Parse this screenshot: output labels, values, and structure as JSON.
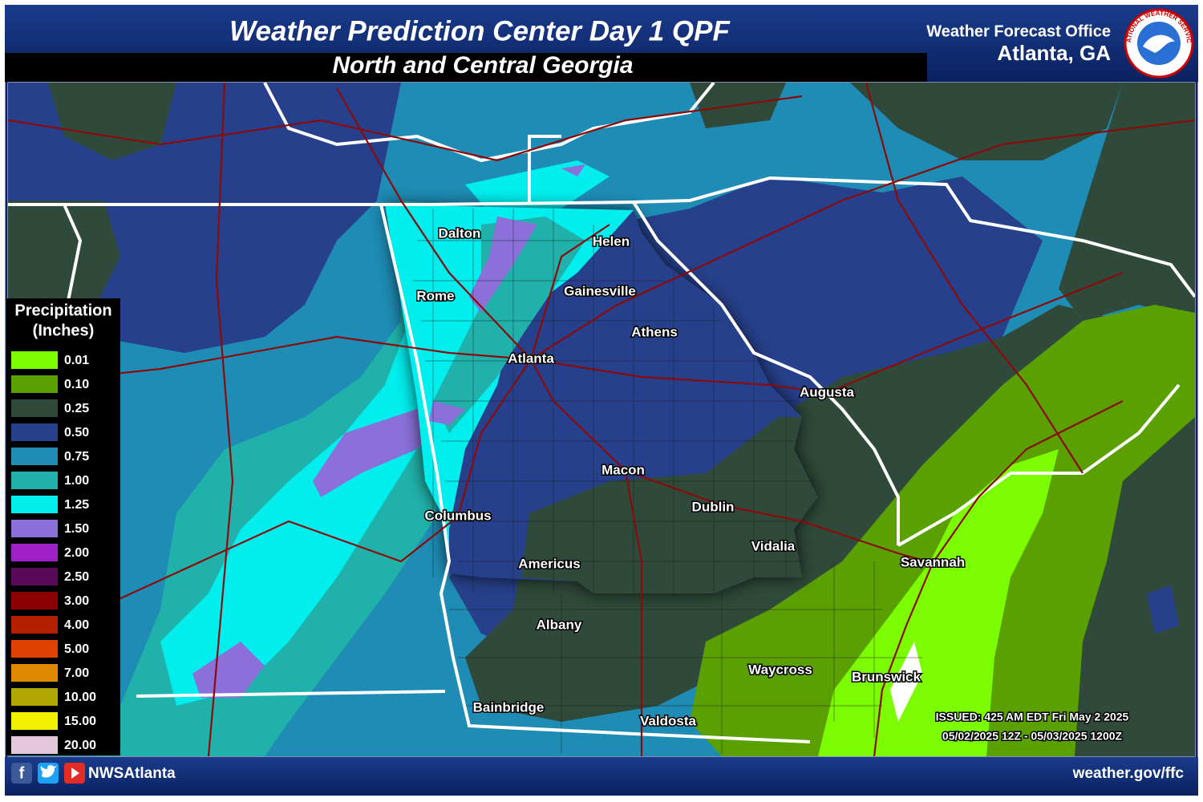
{
  "header": {
    "title": "Weather Prediction Center Day 1 QPF",
    "subtitle": "North and Central Georgia",
    "office_line1": "Weather Forecast Office",
    "office_line2": "Atlanta, GA",
    "logo_text": "NATIONAL WEATHER SERVICE"
  },
  "legend": {
    "title_lines": [
      "Precipitation",
      "(Inches)"
    ],
    "items": [
      {
        "label": "0.01",
        "color": "#7cfc00"
      },
      {
        "label": "0.10",
        "color": "#5aa000"
      },
      {
        "label": "0.25",
        "color": "#2f4a3a"
      },
      {
        "label": "0.50",
        "color": "#27408b"
      },
      {
        "label": "0.75",
        "color": "#1e8cb4"
      },
      {
        "label": "1.00",
        "color": "#20b2aa"
      },
      {
        "label": "1.25",
        "color": "#00eeee"
      },
      {
        "label": "1.50",
        "color": "#8a70d8"
      },
      {
        "label": "2.00",
        "color": "#a020c8"
      },
      {
        "label": "2.50",
        "color": "#5a0a5a"
      },
      {
        "label": "3.00",
        "color": "#8b0000"
      },
      {
        "label": "4.00",
        "color": "#b22000"
      },
      {
        "label": "5.00",
        "color": "#e04000"
      },
      {
        "label": "7.00",
        "color": "#e08800"
      },
      {
        "label": "10.00",
        "color": "#b0a800"
      },
      {
        "label": "15.00",
        "color": "#f0f000"
      },
      {
        "label": "20.00",
        "color": "#e6c8dc"
      }
    ]
  },
  "cities": [
    "Dalton",
    "Helen",
    "Rome",
    "Gainesville",
    "Athens",
    "Atlanta",
    "Augusta",
    "Macon",
    "Dublin",
    "Columbus",
    "Vidalia",
    "Americus",
    "Savannah",
    "Albany",
    "Waycross",
    "Brunswick",
    "Bainbridge",
    "Valdosta"
  ],
  "issued": {
    "line1": "ISSUED: 425 AM EDT Fri May 2 2025",
    "line2": "05/02/2025 12Z - 05/03/2025 1200Z"
  },
  "footer": {
    "handle": "NWSAtlanta",
    "url": "weather.gov/ffc"
  }
}
